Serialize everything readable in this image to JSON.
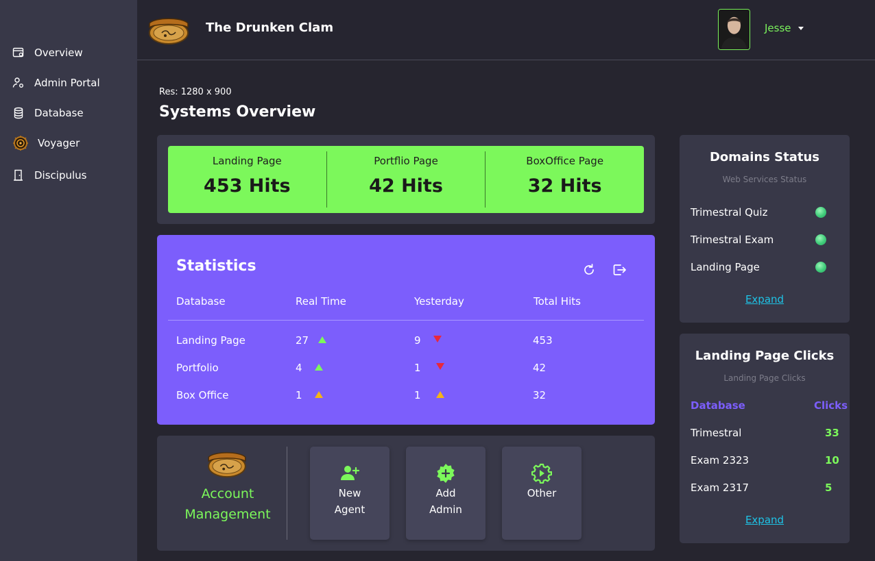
{
  "app": {
    "brand": "The Drunken Clam"
  },
  "sidebar": {
    "items": [
      {
        "label": "Overview"
      },
      {
        "label": "Admin Portal"
      },
      {
        "label": "Database"
      },
      {
        "label": "Voyager"
      },
      {
        "label": "Discipulus"
      }
    ]
  },
  "header": {
    "user_name": "Jesse"
  },
  "main": {
    "resolution": "Res: 1280 x 900",
    "title": "Systems Overview"
  },
  "hits": [
    {
      "label": "Landing Page",
      "value": "453 Hits"
    },
    {
      "label": "Portflio Page",
      "value": "42 Hits"
    },
    {
      "label": "BoxOffice Page",
      "value": "32 Hits"
    }
  ],
  "statistics": {
    "title": "Statistics",
    "columns": [
      "Database",
      "Real Time",
      "Yesterday",
      "Total Hits"
    ],
    "rows": [
      {
        "name": "Landing Page",
        "real_time": "27",
        "real_trend": "up",
        "yesterday": "9",
        "yesterday_trend": "down",
        "total": "453"
      },
      {
        "name": "Portfolio",
        "real_time": "4",
        "real_trend": "up",
        "yesterday": "1",
        "yesterday_trend": "down",
        "total": "42"
      },
      {
        "name": "Box Office",
        "real_time": "1",
        "real_trend": "flat",
        "yesterday": "1",
        "yesterday_trend": "flat",
        "total": "32"
      }
    ]
  },
  "account": {
    "title_line1": "Account",
    "title_line2": "Management",
    "tiles": [
      {
        "line1": "New",
        "line2": "Agent",
        "icon": "add-user-icon"
      },
      {
        "line1": "Add",
        "line2": "Admin",
        "icon": "add-admin-icon"
      },
      {
        "line1": "Other",
        "line2": "",
        "icon": "gear-icon"
      }
    ]
  },
  "domains": {
    "title": "Domains Status",
    "subtitle": "Web Services Status",
    "items": [
      {
        "label": "Trimestral Quiz",
        "status": "online"
      },
      {
        "label": "Trimestral Exam",
        "status": "online"
      },
      {
        "label": "Landing Page",
        "status": "online"
      }
    ],
    "expand": "Expand"
  },
  "clicks": {
    "title": "Landing Page Clicks",
    "subtitle": "Landing Page Clicks",
    "col_database": "Database",
    "col_clicks": "Clicks",
    "rows": [
      {
        "name": "Trimestral",
        "clicks": "33"
      },
      {
        "name": "Exam 2323",
        "clicks": "10"
      },
      {
        "name": "Exam 2317",
        "clicks": "5"
      }
    ],
    "expand": "Expand"
  },
  "colors": {
    "accent_green": "#7cf85b",
    "accent_purple": "#7c5efc",
    "link_cyan": "#1ec3e6",
    "trend_up": "#7cf85b",
    "trend_down": "#e8283a",
    "trend_flat": "#f5b316"
  }
}
